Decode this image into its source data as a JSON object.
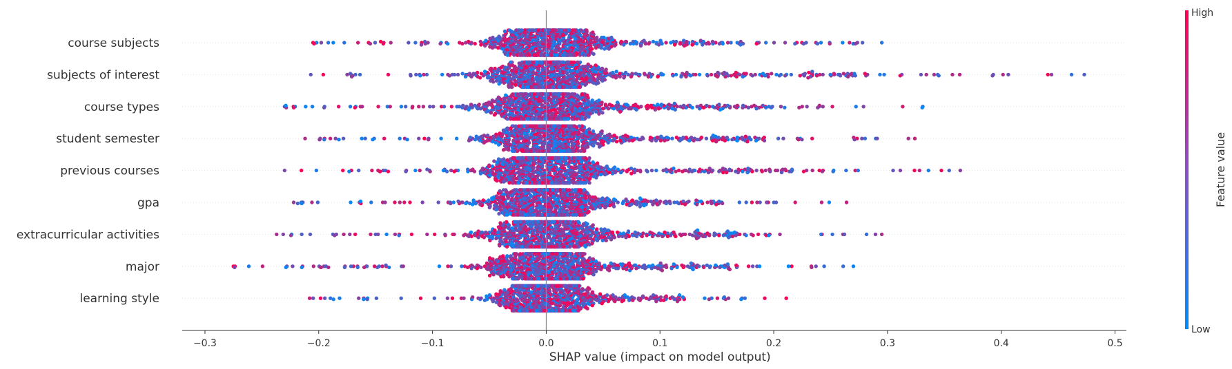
{
  "chart_data": {
    "type": "scatter",
    "subtype": "shap-beeswarm",
    "xlabel": "SHAP value (impact on model output)",
    "xlim": [
      -0.32,
      0.51
    ],
    "xticks": [
      -0.3,
      -0.2,
      -0.1,
      0.0,
      0.1,
      0.2,
      0.3,
      0.4,
      0.5
    ],
    "xtick_labels": [
      "−0.3",
      "−0.2",
      "−0.1",
      "0.0",
      "0.1",
      "0.2",
      "0.3",
      "0.4",
      "0.5"
    ],
    "features": [
      {
        "name": "course subjects",
        "min": -0.205,
        "max": 0.295,
        "spread": 0.047
      },
      {
        "name": "subjects of interest",
        "min": -0.207,
        "max": 0.473,
        "spread": 0.05
      },
      {
        "name": "course types",
        "min": -0.23,
        "max": 0.331,
        "spread": 0.048
      },
      {
        "name": "student semester",
        "min": -0.212,
        "max": 0.324,
        "spread": 0.044
      },
      {
        "name": "previous courses",
        "min": -0.23,
        "max": 0.364,
        "spread": 0.048
      },
      {
        "name": "gpa",
        "min": -0.222,
        "max": 0.264,
        "spread": 0.045
      },
      {
        "name": "extracurricular activities",
        "min": -0.237,
        "max": 0.295,
        "spread": 0.047
      },
      {
        "name": "major",
        "min": -0.275,
        "max": 0.27,
        "spread": 0.045
      },
      {
        "name": "learning style",
        "min": -0.208,
        "max": 0.211,
        "spread": 0.038
      }
    ],
    "zero_line": 0.0,
    "colorbar": {
      "title": "Feature value",
      "high_label": "High",
      "low_label": "Low",
      "high_color": "#ff0052",
      "low_color": "#008bfb"
    },
    "grid": false,
    "points_per_feature": 1000
  }
}
